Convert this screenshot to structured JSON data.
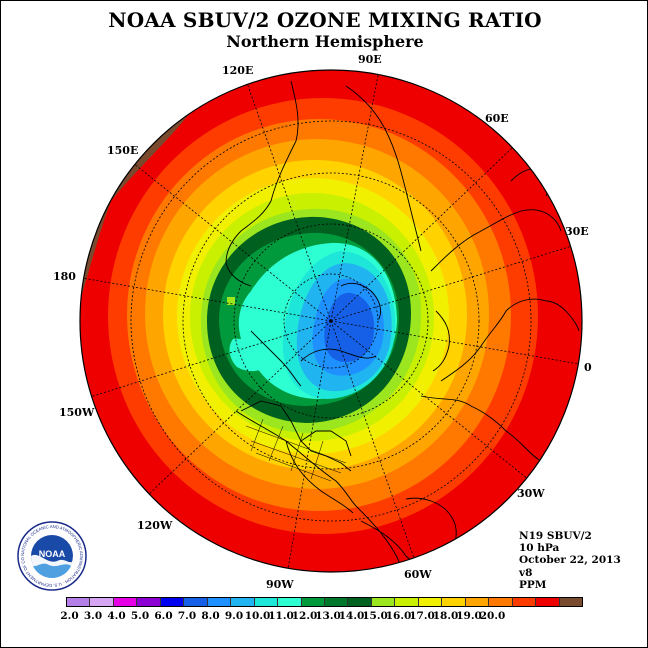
{
  "title": "NOAA SBUV/2 OZONE MIXING RATIO",
  "subtitle": "Northern Hemisphere",
  "longitude_labels": {
    "lon_120e": "120E",
    "lon_90e": "90E",
    "lon_60e": "60E",
    "lon_30e": "30E",
    "lon_0": "0",
    "lon_150e": "150E",
    "lon_180": "180",
    "lon_150w": "150W",
    "lon_120w": "120W",
    "lon_90w": "90W",
    "lon_60w": "60W",
    "lon_30w": "30W"
  },
  "info": {
    "satellite": "N19 SBUV/2",
    "pressure": "10 hPa",
    "date": "October 22, 2013",
    "version": "v8",
    "units": "PPM"
  },
  "logo": {
    "text": "NOAA",
    "ring_text": "NATIONAL OCEANIC AND ATMOSPHERIC ADMINISTRATION · U.S. DEPARTMENT OF COMMERCE"
  },
  "colorbar": {
    "colors": [
      "#b47fe6",
      "#d7a6f2",
      "#e600e6",
      "#8c00d4",
      "#0000f0",
      "#1560e6",
      "#1e90ff",
      "#20b4f0",
      "#1ee6d9",
      "#2dffd2",
      "#009a3c",
      "#00782c",
      "#006020",
      "#9be61e",
      "#c8f000",
      "#f0f000",
      "#ffd200",
      "#ffa500",
      "#ff7800",
      "#ff3c00",
      "#ee0000",
      "#7a4a2e"
    ],
    "tick_labels": [
      "2.0",
      "3.0",
      "4.0",
      "5.0",
      "6.0",
      "7.0",
      "8.0",
      "9.0",
      "10.0",
      "11.0",
      "12.0",
      "13.0",
      "14.0",
      "15.0",
      "16.0",
      "17.0",
      "18.0",
      "19.0",
      "20.0"
    ]
  }
}
